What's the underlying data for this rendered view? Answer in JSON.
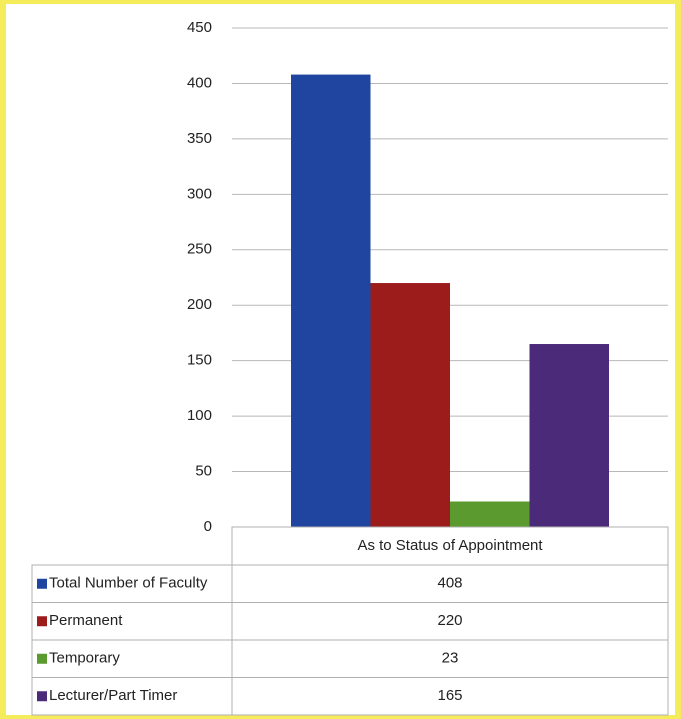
{
  "chart_data": {
    "type": "bar",
    "categories": [
      "As to Status of Appointment"
    ],
    "series": [
      {
        "name": "Total Number of Faculty",
        "color": "#1f45a0",
        "values": [
          408
        ]
      },
      {
        "name": "Permanent",
        "color": "#9c1c1c",
        "values": [
          220
        ]
      },
      {
        "name": "Temporary",
        "color": "#5a9a2e",
        "values": [
          23
        ]
      },
      {
        "name": "Lecturer/Part Timer",
        "color": "#4b2a7a",
        "values": [
          165
        ]
      }
    ],
    "ylim": [
      0,
      450
    ],
    "yticks": [
      0,
      50,
      100,
      150,
      200,
      250,
      300,
      350,
      400,
      450
    ],
    "grid": true
  }
}
